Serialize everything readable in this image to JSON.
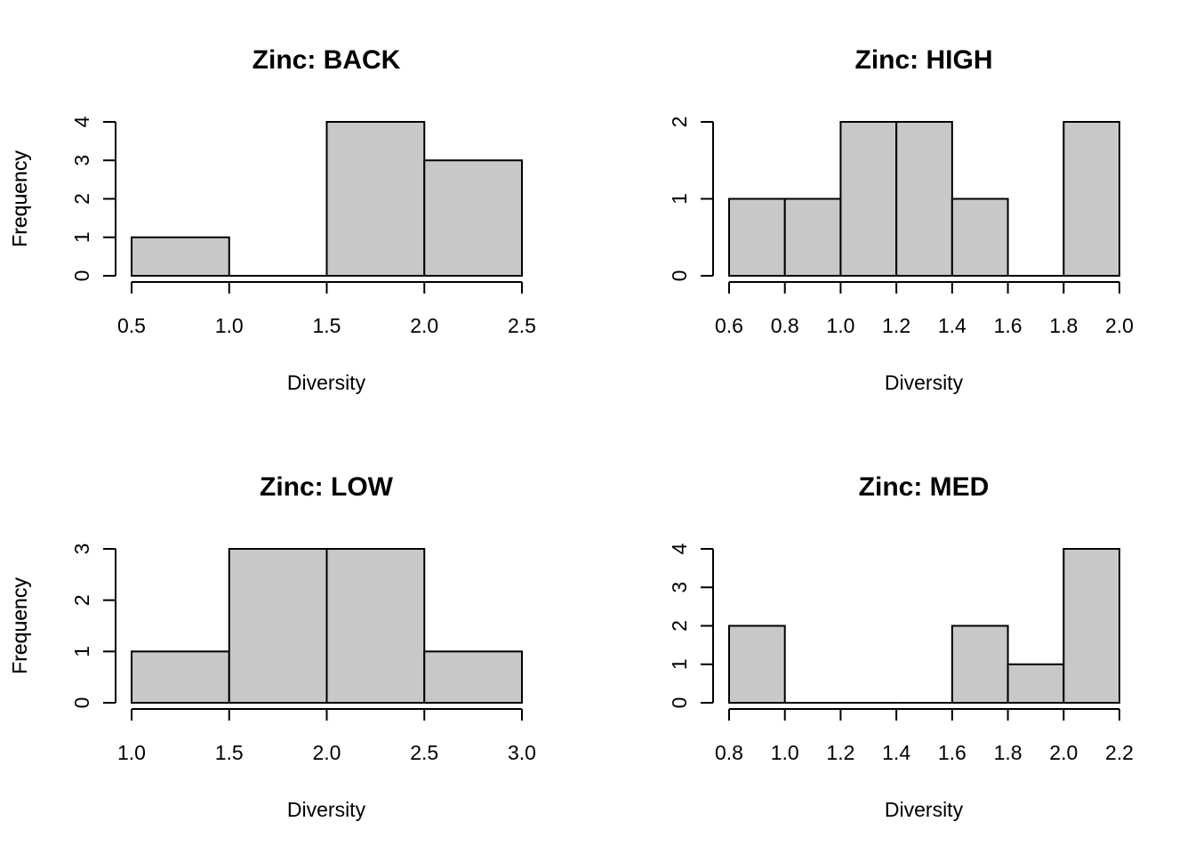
{
  "chart_data": [
    {
      "type": "bar",
      "title": "Zinc: BACK",
      "xlabel": "Diversity",
      "ylabel": "Frequency",
      "breaks": [
        0.5,
        1.0,
        1.5,
        2.0,
        2.5
      ],
      "values": [
        1,
        0,
        4,
        3
      ],
      "xticks": [
        "0.5",
        "1.0",
        "1.5",
        "2.0",
        "2.5"
      ],
      "yticks": [
        "0",
        "1",
        "2",
        "3",
        "4"
      ],
      "xlim": [
        0.5,
        2.5
      ],
      "ylim": [
        0,
        4
      ],
      "bar_color": "#c8c8c8"
    },
    {
      "type": "bar",
      "title": "Zinc: HIGH",
      "xlabel": "Diversity",
      "ylabel": "Frequency",
      "breaks": [
        0.6,
        0.8,
        1.0,
        1.2,
        1.4,
        1.6,
        1.8,
        2.0
      ],
      "values": [
        1,
        1,
        2,
        2,
        1,
        0,
        2
      ],
      "xticks": [
        "0.6",
        "0.8",
        "1.0",
        "1.2",
        "1.4",
        "1.6",
        "1.8",
        "2.0"
      ],
      "yticks": [
        "0",
        "1",
        "2"
      ],
      "xlim": [
        0.6,
        2.0
      ],
      "ylim": [
        0,
        2
      ],
      "bar_color": "#c8c8c8"
    },
    {
      "type": "bar",
      "title": "Zinc: LOW",
      "xlabel": "Diversity",
      "ylabel": "Frequency",
      "breaks": [
        1.0,
        1.5,
        2.0,
        2.5,
        3.0
      ],
      "values": [
        1,
        3,
        3,
        1
      ],
      "xticks": [
        "1.0",
        "1.5",
        "2.0",
        "2.5",
        "3.0"
      ],
      "yticks": [
        "0",
        "1",
        "2",
        "3"
      ],
      "xlim": [
        1.0,
        3.0
      ],
      "ylim": [
        0,
        3
      ],
      "bar_color": "#c8c8c8"
    },
    {
      "type": "bar",
      "title": "Zinc: MED",
      "xlabel": "Diversity",
      "ylabel": "Frequency",
      "breaks": [
        0.8,
        1.0,
        1.2,
        1.4,
        1.6,
        1.8,
        2.0,
        2.2
      ],
      "values": [
        2,
        0,
        0,
        0,
        2,
        1,
        4
      ],
      "xticks": [
        "0.8",
        "1.0",
        "1.2",
        "1.4",
        "1.6",
        "1.8",
        "2.0",
        "2.2"
      ],
      "yticks": [
        "0",
        "1",
        "2",
        "3",
        "4"
      ],
      "xlim": [
        0.8,
        2.2
      ],
      "ylim": [
        0,
        4
      ],
      "bar_color": "#c8c8c8"
    }
  ]
}
